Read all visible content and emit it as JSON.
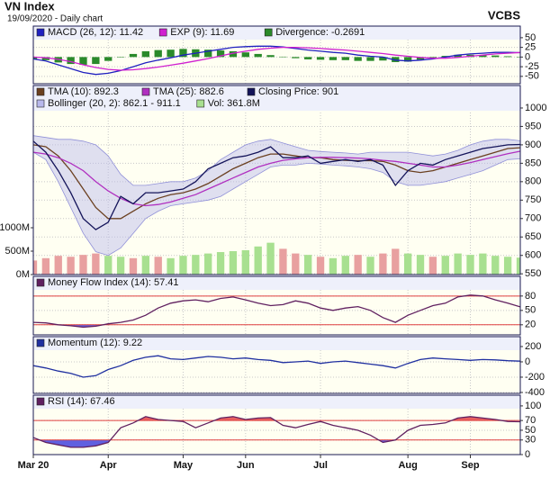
{
  "header": {
    "title": "VN Index",
    "subtitle": "19/09/2020 - Daily chart",
    "brand": "VCBS"
  },
  "chart_data": [
    {
      "type": "line",
      "ylim": [
        -69,
        80
      ],
      "yticks": [
        50,
        25,
        0,
        -25,
        -50
      ],
      "grid": true,
      "series": [
        {
          "name": "MACD (26, 12): 11.42",
          "color": "#2020c0",
          "values": [
            -5,
            -10,
            -20,
            -30,
            -40,
            -45,
            -42,
            -35,
            -25,
            -15,
            -8,
            -2,
            5,
            10,
            15,
            20,
            25,
            27,
            28,
            28,
            26,
            22,
            18,
            15,
            12,
            10,
            5,
            2,
            0,
            -8,
            -10,
            -8,
            -5,
            0,
            5,
            8,
            10,
            12,
            12,
            11.42
          ]
        },
        {
          "name": "EXP (9): 11.69",
          "color": "#d020d0",
          "values": [
            0,
            -2,
            -6,
            -12,
            -20,
            -27,
            -32,
            -34,
            -33,
            -30,
            -26,
            -21,
            -16,
            -10,
            -4,
            3,
            10,
            15,
            20,
            23,
            25,
            25,
            24,
            22,
            20,
            18,
            15,
            12,
            9,
            5,
            2,
            -1,
            -3,
            -3,
            -1,
            2,
            5,
            8,
            10,
            11.69
          ]
        },
        {
          "name": "Divergence: -0.2691",
          "color": "#2a8a2a",
          "type": "bar",
          "values": [
            -5,
            -8,
            -14,
            -18,
            -20,
            -18,
            -10,
            -1,
            8,
            15,
            18,
            19,
            21,
            20,
            19,
            17,
            15,
            12,
            8,
            5,
            1,
            -3,
            -6,
            -7,
            -8,
            -8,
            -10,
            -10,
            -9,
            -13,
            -12,
            -7,
            -2,
            3,
            6,
            6,
            5,
            4,
            2,
            -0.2691
          ]
        }
      ]
    },
    {
      "type": "line",
      "ylim": [
        548,
        1061
      ],
      "yticks": [
        1000,
        950,
        900,
        850,
        800,
        750,
        700,
        650,
        600,
        550
      ],
      "grid": true,
      "y2lim": [
        0,
        4038
      ],
      "y2ticks": [
        {
          "value": 1000,
          "label": "1000M"
        },
        {
          "value": 500,
          "label": "500M"
        },
        {
          "value": 0,
          "label": "0M"
        }
      ],
      "series": [
        {
          "name": "TMA (10): 892.3",
          "color": "#6b4020",
          "values": [
            900,
            895,
            870,
            830,
            780,
            730,
            700,
            700,
            720,
            740,
            755,
            765,
            770,
            780,
            795,
            815,
            835,
            850,
            865,
            875,
            875,
            870,
            865,
            865,
            860,
            858,
            857,
            857,
            855,
            845,
            830,
            825,
            830,
            840,
            850,
            860,
            870,
            880,
            890,
            892.3
          ]
        },
        {
          "name": "TMA (25): 882.6",
          "color": "#b030c0",
          "values": [
            880,
            875,
            865,
            850,
            830,
            800,
            775,
            755,
            740,
            735,
            738,
            745,
            755,
            765,
            780,
            795,
            810,
            825,
            840,
            850,
            858,
            862,
            865,
            866,
            866,
            865,
            864,
            862,
            858,
            855,
            850,
            845,
            840,
            840,
            845,
            852,
            860,
            868,
            876,
            882.6
          ]
        },
        {
          "name": "Closing Price: 901",
          "color": "#14145a",
          "values": [
            910,
            880,
            830,
            770,
            700,
            670,
            690,
            760,
            740,
            770,
            770,
            775,
            780,
            800,
            835,
            850,
            865,
            870,
            880,
            895,
            865,
            865,
            870,
            850,
            855,
            860,
            855,
            860,
            845,
            790,
            830,
            850,
            845,
            860,
            870,
            880,
            890,
            895,
            900,
            901
          ]
        },
        {
          "name": "Bollinger (20, 2): 862.1 - 911.1",
          "color": "#b8b8ec",
          "type": "band",
          "upper": [
            925,
            920,
            915,
            915,
            910,
            900,
            870,
            820,
            790,
            790,
            795,
            800,
            800,
            810,
            830,
            860,
            880,
            900,
            910,
            915,
            905,
            895,
            885,
            882,
            880,
            878,
            875,
            880,
            880,
            880,
            880,
            875,
            870,
            875,
            885,
            900,
            910,
            915,
            915,
            911.1
          ],
          "lower": [
            880,
            860,
            800,
            730,
            660,
            610,
            600,
            620,
            660,
            700,
            720,
            735,
            740,
            745,
            750,
            760,
            780,
            800,
            820,
            840,
            845,
            845,
            850,
            848,
            845,
            843,
            840,
            835,
            825,
            800,
            790,
            790,
            795,
            800,
            810,
            820,
            830,
            845,
            860,
            862.1
          ]
        },
        {
          "name": "Vol: 361.8M",
          "color": "#a8e090",
          "type": "bar",
          "axis": "y2",
          "values": [
            300,
            350,
            400,
            380,
            420,
            450,
            400,
            380,
            350,
            400,
            380,
            350,
            400,
            420,
            450,
            480,
            500,
            520,
            600,
            680,
            550,
            450,
            420,
            380,
            350,
            400,
            420,
            380,
            450,
            550,
            450,
            420,
            380,
            400,
            450,
            420,
            450,
            400,
            380,
            361.8
          ],
          "colors": [
            "#e8a0a0",
            "#e8a0a0",
            "#e8a0a0",
            "#e8a0a0",
            "#e8a0a0",
            "#e8a0a0",
            "#a8e090",
            "#a8e090",
            "#e8a0a0",
            "#a8e090",
            "#e8a0a0",
            "#a8e090",
            "#a8e090",
            "#a8e090",
            "#a8e090",
            "#a8e090",
            "#a8e090",
            "#a8e090",
            "#a8e090",
            "#a8e090",
            "#e8a0a0",
            "#e8a0a0",
            "#a8e090",
            "#e8a0a0",
            "#a8e090",
            "#a8e090",
            "#e8a0a0",
            "#a8e090",
            "#e8a0a0",
            "#e8a0a0",
            "#a8e090",
            "#a8e090",
            "#e8a0a0",
            "#a8e090",
            "#a8e090",
            "#a8e090",
            "#a8e090",
            "#a8e090",
            "#a8e090",
            "#a8e090"
          ]
        }
      ]
    },
    {
      "type": "line",
      "ylim": [
        -1,
        121
      ],
      "yticks": [
        80,
        50,
        20
      ],
      "grid": true,
      "thresholds": [
        {
          "value": 80,
          "color": "#e04040",
          "fill": "#e86060",
          "side": "above"
        },
        {
          "value": 20,
          "color": "#e04040",
          "fill": "#6060e0",
          "side": "below"
        }
      ],
      "series": [
        {
          "name": "Money Flow Index (14): 57.41",
          "color": "#602060",
          "values": [
            25,
            24,
            20,
            18,
            15,
            17,
            22,
            25,
            30,
            40,
            55,
            65,
            70,
            72,
            68,
            75,
            78,
            72,
            65,
            60,
            62,
            70,
            65,
            55,
            50,
            55,
            58,
            50,
            35,
            25,
            40,
            50,
            60,
            65,
            78,
            82,
            80,
            72,
            65,
            57.41
          ]
        }
      ]
    },
    {
      "type": "line",
      "ylim": [
        -412,
        329
      ],
      "yticks": [
        200,
        0,
        -200,
        -400
      ],
      "grid": true,
      "series": [
        {
          "name": "Momentum (12): 9.22",
          "color": "#2030a0",
          "values": [
            -50,
            -80,
            -120,
            -150,
            -200,
            -180,
            -100,
            -50,
            20,
            60,
            80,
            40,
            30,
            50,
            70,
            60,
            40,
            50,
            30,
            20,
            -10,
            0,
            10,
            -20,
            0,
            10,
            -10,
            -30,
            -50,
            -80,
            -20,
            30,
            50,
            40,
            30,
            20,
            30,
            25,
            15,
            9.22
          ]
        }
      ]
    },
    {
      "type": "line",
      "ylim": [
        0,
        122
      ],
      "yticks": [
        100,
        70,
        50,
        30,
        0
      ],
      "grid": true,
      "thresholds": [
        {
          "value": 70,
          "color": "#e04040",
          "fill": "#e86060",
          "side": "above"
        },
        {
          "value": 30,
          "color": "#e04040",
          "fill": "#6060e0",
          "side": "below"
        }
      ],
      "categories": [
        "Mar 20",
        null,
        null,
        null,
        null,
        null,
        "Apr",
        null,
        null,
        null,
        null,
        null,
        "May",
        null,
        null,
        null,
        null,
        "Jun",
        null,
        null,
        null,
        null,
        null,
        "Jul",
        null,
        null,
        null,
        null,
        null,
        null,
        "Aug",
        null,
        null,
        null,
        null,
        "Sep",
        null,
        null,
        null,
        null
      ],
      "series": [
        {
          "name": "RSI (14): 67.46",
          "color": "#602060",
          "values": [
            35,
            25,
            20,
            15,
            15,
            18,
            25,
            55,
            65,
            78,
            72,
            70,
            68,
            55,
            65,
            75,
            78,
            72,
            75,
            76,
            60,
            55,
            62,
            68,
            60,
            55,
            50,
            40,
            25,
            30,
            50,
            60,
            62,
            65,
            75,
            78,
            75,
            72,
            68,
            67.46
          ]
        }
      ]
    }
  ]
}
